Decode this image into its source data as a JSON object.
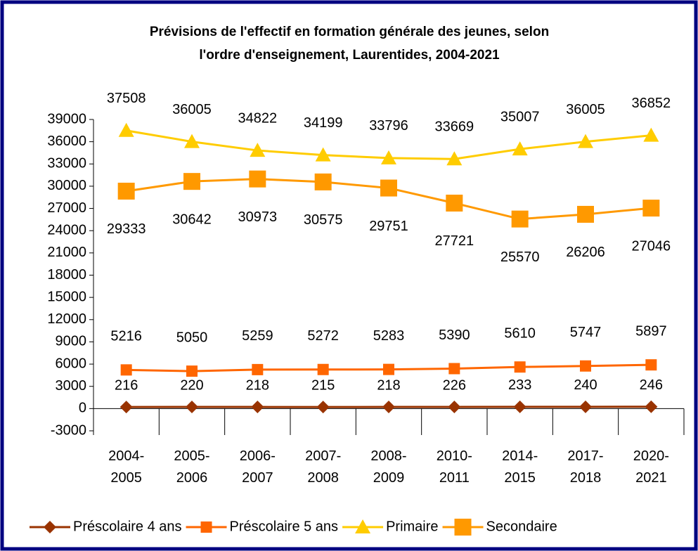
{
  "chart_data": {
    "type": "line",
    "title": [
      "Prévisions de l'effectif en formation générale des jeunes, selon",
      "l'ordre d'enseignement, Laurentides, 2004-2021"
    ],
    "categories": [
      "2004-2005",
      "2005-2006",
      "2006-2007",
      "2007-2008",
      "2008-2009",
      "2010-2011",
      "2014-2015",
      "2017-2018",
      "2020-2021"
    ],
    "series": [
      {
        "name": "Préscolaire 4 ans",
        "color": "#993300",
        "marker": "diamond",
        "values": [
          216,
          220,
          218,
          215,
          218,
          226,
          233,
          240,
          246
        ]
      },
      {
        "name": "Préscolaire 5 ans",
        "color": "#FF6600",
        "marker": "square",
        "values": [
          5216,
          5050,
          5259,
          5272,
          5283,
          5390,
          5610,
          5747,
          5897
        ]
      },
      {
        "name": "Primaire",
        "color": "#FFCC00",
        "marker": "triangle",
        "values": [
          37508,
          36005,
          34822,
          34199,
          33796,
          33669,
          35007,
          36005,
          36852
        ]
      },
      {
        "name": "Secondaire",
        "color": "#FF9900",
        "marker": "bigsquare",
        "values": [
          29333,
          30642,
          30973,
          30575,
          29751,
          27721,
          25570,
          26206,
          27046
        ]
      }
    ],
    "ylim": [
      -3000,
      39000
    ],
    "yticks": [
      -3000,
      0,
      3000,
      6000,
      9000,
      12000,
      15000,
      18000,
      21000,
      24000,
      27000,
      30000,
      33000,
      36000,
      39000
    ],
    "legend": "bottom"
  }
}
